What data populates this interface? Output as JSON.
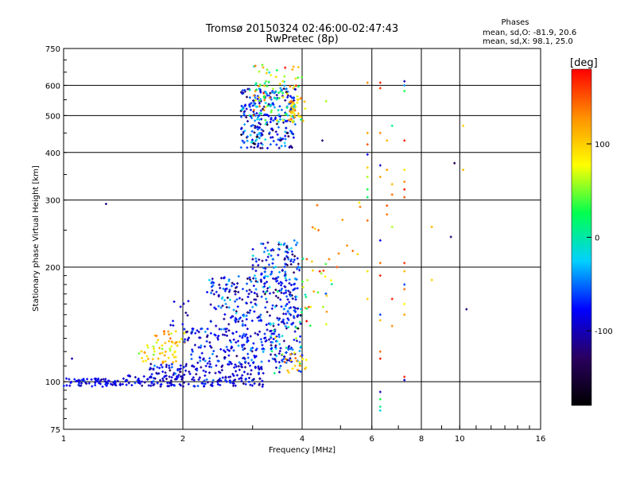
{
  "chart_data": {
    "type": "scatter",
    "title": "Tromsø 20150324 02:46:00-02:47:43",
    "subtitle": "RwPretec (8p)",
    "stats": {
      "heading": "Phases",
      "line1": "mean, sd,O: -81.9, 20.6",
      "line2": "mean, sd,X:  98.1, 25.0"
    },
    "xlabel": "Frequency [MHz]",
    "ylabel": "Stationary phase Virtual Height [km]",
    "xscale": "log",
    "yscale": "log",
    "xlim": [
      1,
      16
    ],
    "ylim": [
      75,
      750
    ],
    "xticks": [
      1,
      2,
      4,
      6,
      8,
      10,
      16
    ],
    "xtick_labels": [
      "1",
      "2",
      "4",
      "6",
      "8",
      "10",
      "16"
    ],
    "yticks": [
      75,
      100,
      200,
      300,
      400,
      500,
      600,
      750
    ],
    "ytick_labels": [
      "75",
      "100",
      "200",
      "300",
      "400",
      "500",
      "600",
      "750"
    ],
    "grid": true,
    "colorbar": {
      "label": "[deg]",
      "range": [
        -180,
        180
      ],
      "ticks": [
        100,
        0,
        -100
      ],
      "tick_labels": [
        "100",
        "0",
        "-100"
      ],
      "colors": [
        "#000000",
        "#2a0060",
        "#0000ff",
        "#00d0ff",
        "#00ff50",
        "#ffff00",
        "#ff9000",
        "#ff0000"
      ]
    },
    "series": [
      {
        "clusters": [
          {
            "f": [
              1.0,
              1.45
            ],
            "h": [
              97,
              102
            ],
            "ph": -85,
            "sph": 12,
            "n": 70
          },
          {
            "f": [
              1.45,
              2.0
            ],
            "h": [
              97,
              104
            ],
            "ph": -90,
            "sph": 15,
            "n": 70
          },
          {
            "f": [
              1.65,
              2.0
            ],
            "h": [
              104,
              112
            ],
            "ph": -80,
            "sph": 20,
            "n": 35
          },
          {
            "f": [
              1.55,
              1.95
            ],
            "h": [
              112,
              125
            ],
            "ph": 95,
            "sph": 25,
            "n": 40
          },
          {
            "f": [
              1.7,
              2.05
            ],
            "h": [
              126,
              136
            ],
            "ph": 110,
            "sph": 25,
            "n": 25
          },
          {
            "f": [
              1.85,
              2.1
            ],
            "h": [
              140,
              165
            ],
            "ph": -95,
            "sph": 15,
            "n": 10
          },
          {
            "f": [
              2.0,
              3.2
            ],
            "h": [
              97,
              112
            ],
            "ph": -90,
            "sph": 15,
            "n": 140
          },
          {
            "f": [
              2.1,
              3.8
            ],
            "h": [
              112,
              125
            ],
            "ph": -80,
            "sph": 25,
            "n": 110
          },
          {
            "f": [
              2.0,
              3.5
            ],
            "h": [
              126,
              138
            ],
            "ph": -85,
            "sph": 20,
            "n": 90
          },
          {
            "f": [
              2.3,
              3.9
            ],
            "h": [
              140,
              190
            ],
            "ph": -80,
            "sph": 28,
            "n": 200
          },
          {
            "f": [
              3.0,
              3.95
            ],
            "h": [
              170,
              235
            ],
            "ph": -70,
            "sph": 35,
            "n": 130
          },
          {
            "f": [
              3.3,
              4.0
            ],
            "h": [
              105,
              160
            ],
            "ph": -40,
            "sph": 60,
            "n": 70
          },
          {
            "f": [
              3.6,
              4.1
            ],
            "h": [
              105,
              120
            ],
            "ph": 110,
            "sph": 25,
            "n": 20
          },
          {
            "f": [
              4.0,
              4.8
            ],
            "h": [
              140,
              220
            ],
            "ph": 80,
            "sph": 60,
            "n": 30
          },
          {
            "f": [
              4.2,
              5.8
            ],
            "h": [
              200,
              300
            ],
            "ph": 130,
            "sph": 30,
            "n": 10
          },
          {
            "f": [
              2.8,
              3.85
            ],
            "h": [
              410,
              590
            ],
            "ph": -75,
            "sph": 40,
            "n": 260
          },
          {
            "f": [
              3.0,
              4.0
            ],
            "h": [
              480,
              680
            ],
            "ph": 60,
            "sph": 60,
            "n": 110
          },
          {
            "f": [
              3.7,
              4.1
            ],
            "h": [
              480,
              560
            ],
            "ph": 110,
            "sph": 25,
            "n": 30
          }
        ],
        "points": [
          [
            5.85,
            610,
            130
          ],
          [
            5.85,
            450,
            120
          ],
          [
            5.85,
            420,
            150
          ],
          [
            5.85,
            395,
            -80
          ],
          [
            5.85,
            365,
            100
          ],
          [
            5.85,
            345,
            60
          ],
          [
            5.85,
            320,
            30
          ],
          [
            5.85,
            305,
            20
          ],
          [
            5.85,
            265,
            140
          ],
          [
            5.85,
            195,
            90
          ],
          [
            5.85,
            165,
            100
          ],
          [
            6.3,
            610,
            170
          ],
          [
            6.3,
            590,
            160
          ],
          [
            6.3,
            450,
            130
          ],
          [
            6.3,
            370,
            -90
          ],
          [
            6.3,
            345,
            120
          ],
          [
            6.3,
            235,
            -80
          ],
          [
            6.3,
            205,
            140
          ],
          [
            6.3,
            190,
            170
          ],
          [
            6.3,
            150,
            -60
          ],
          [
            6.3,
            145,
            110
          ],
          [
            6.3,
            120,
            140
          ],
          [
            6.3,
            115,
            170
          ],
          [
            6.3,
            94,
            -100
          ],
          [
            6.3,
            90,
            30
          ],
          [
            6.3,
            86,
            10
          ],
          [
            6.3,
            84,
            -20
          ],
          [
            6.55,
            430,
            110
          ],
          [
            6.55,
            360,
            120
          ],
          [
            6.55,
            290,
            150
          ],
          [
            6.55,
            275,
            140
          ],
          [
            6.75,
            470,
            10
          ],
          [
            6.75,
            330,
            110
          ],
          [
            6.75,
            310,
            140
          ],
          [
            6.75,
            255,
            60
          ],
          [
            6.75,
            165,
            170
          ],
          [
            6.75,
            140,
            130
          ],
          [
            7.25,
            615,
            -100
          ],
          [
            7.25,
            600,
            -40
          ],
          [
            7.25,
            580,
            30
          ],
          [
            7.25,
            430,
            170
          ],
          [
            7.25,
            360,
            90
          ],
          [
            7.25,
            335,
            130
          ],
          [
            7.25,
            320,
            170
          ],
          [
            7.25,
            305,
            150
          ],
          [
            7.25,
            205,
            160
          ],
          [
            7.25,
            195,
            110
          ],
          [
            7.25,
            180,
            -60
          ],
          [
            7.25,
            175,
            140
          ],
          [
            7.25,
            160,
            80
          ],
          [
            7.25,
            150,
            120
          ],
          [
            7.25,
            103,
            170
          ],
          [
            7.25,
            101,
            -100
          ],
          [
            8.5,
            255,
            110
          ],
          [
            8.5,
            185,
            100
          ],
          [
            9.5,
            240,
            -120
          ],
          [
            9.7,
            375,
            -140
          ],
          [
            10.2,
            360,
            110
          ],
          [
            10.2,
            470,
            100
          ],
          [
            10.4,
            155,
            -120
          ],
          [
            4.5,
            430,
            -120
          ],
          [
            4.6,
            545,
            60
          ],
          [
            1.28,
            293,
            -120
          ],
          [
            1.05,
            115,
            -100
          ],
          [
            4.9,
            200,
            150
          ],
          [
            4.4,
            250,
            140
          ]
        ]
      }
    ]
  }
}
